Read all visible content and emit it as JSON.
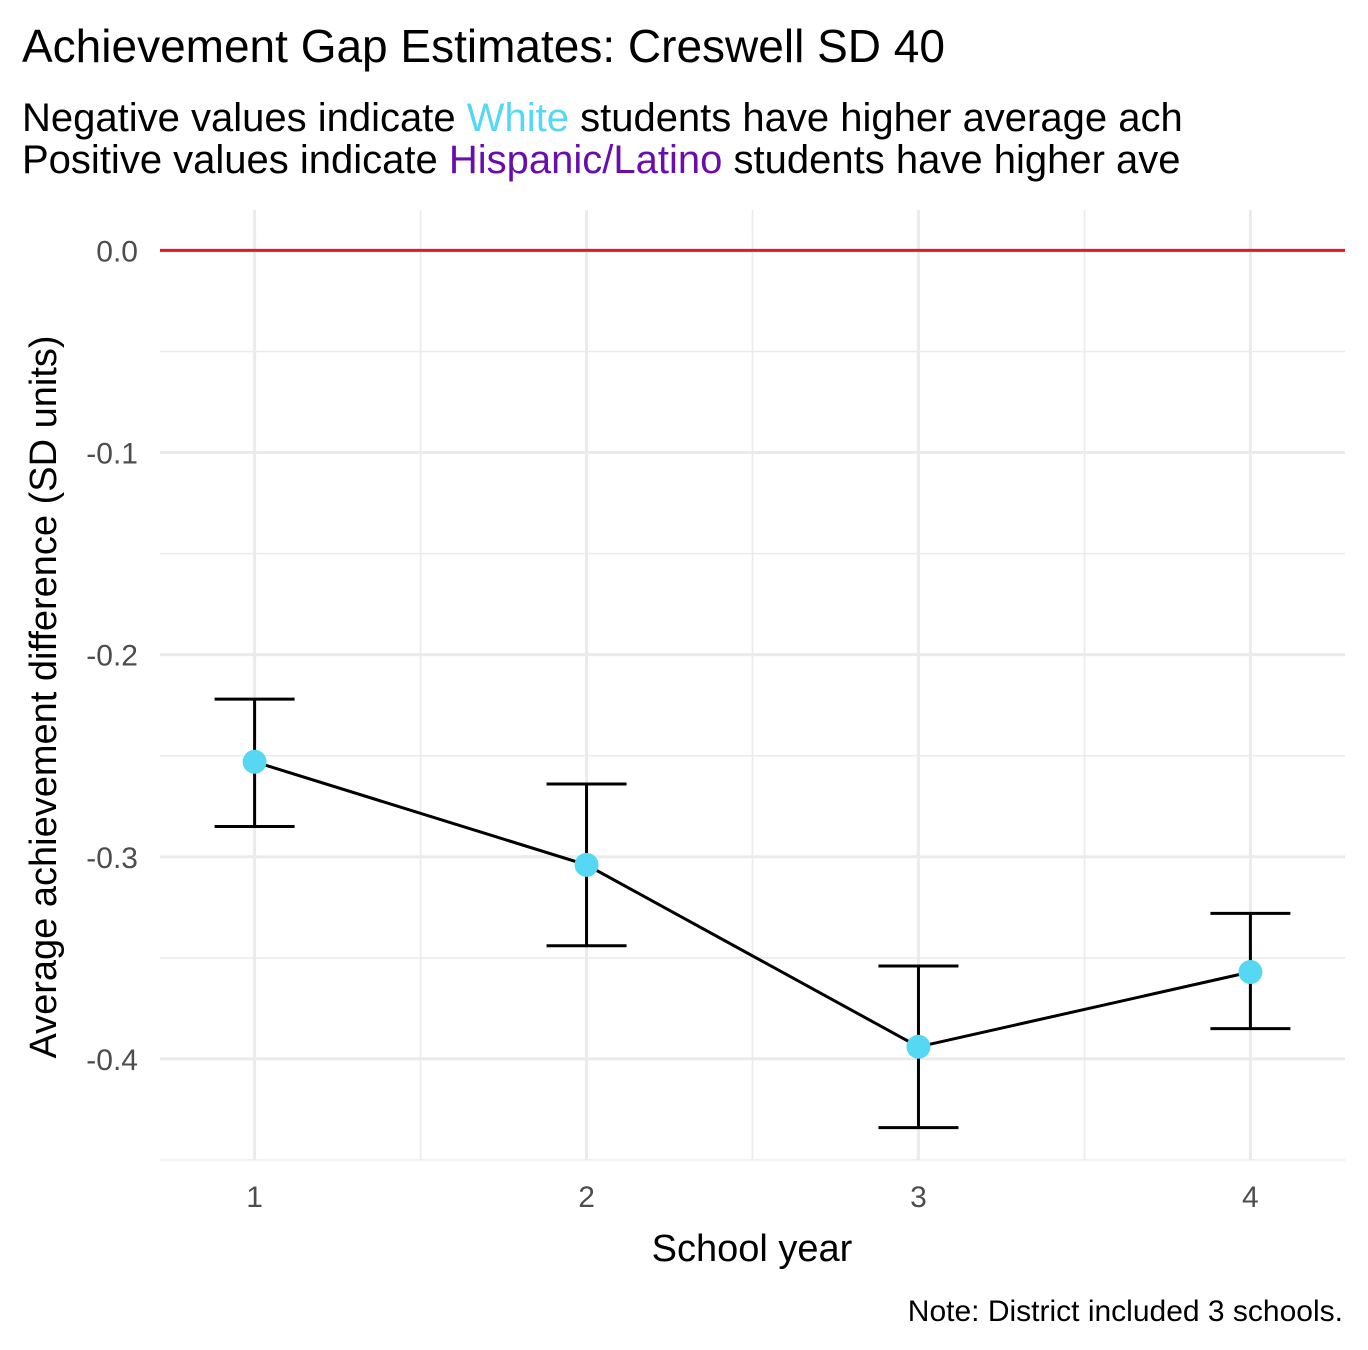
{
  "chart_data": {
    "type": "line",
    "title": "Achievement Gap Estimates: Creswell SD 40",
    "subtitle": {
      "line1": {
        "prefix": "Negative values indicate ",
        "group": "White",
        "suffix": " students have higher average ach"
      },
      "line2": {
        "prefix": "Positive values indicate ",
        "group": "Hispanic/Latino",
        "suffix": " students have higher ave"
      }
    },
    "xlabel": "School year",
    "ylabel": "Average achievement difference (SD units)",
    "caption": "Note: District included 3 schools.",
    "x": [
      1,
      2,
      3,
      4
    ],
    "x_tick_labels": [
      "1",
      "2",
      "3",
      "4"
    ],
    "y_tick_labels": [
      "0.0",
      "-0.1",
      "-0.2",
      "-0.3",
      "-0.4"
    ],
    "y_ticks": [
      0.0,
      -0.1,
      -0.2,
      -0.3,
      -0.4
    ],
    "xlim": [
      0.715,
      4.285
    ],
    "ylim": [
      -0.45,
      0.02
    ],
    "series": [
      {
        "values": [
          -0.253,
          -0.304,
          -0.394,
          -0.357
        ],
        "lower": [
          -0.285,
          -0.344,
          -0.434,
          -0.385
        ],
        "upper": [
          -0.222,
          -0.264,
          -0.354,
          -0.328
        ]
      }
    ],
    "reference_line": {
      "y": 0.0,
      "color": "#e41a1c"
    },
    "grid": true,
    "colors": {
      "white_group": "#56d8f3",
      "hispanic_group": "#6a0dad",
      "point": "#56d8f3",
      "line": "#000000",
      "reference": "#e41a1c",
      "grid": "#ebebeb",
      "tick": "#4d4d4d"
    }
  }
}
